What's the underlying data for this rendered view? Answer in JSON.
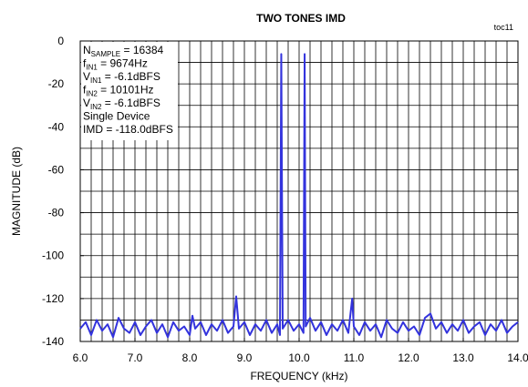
{
  "chart_data": {
    "type": "line",
    "title": "TWO TONES IMD",
    "figure_id": "toc11",
    "xlabel": "FREQUENCY (kHz)",
    "ylabel": "MAGNITUDE (dB)",
    "xlim": [
      6.0,
      14.0
    ],
    "ylim": [
      -140,
      0
    ],
    "xticks": [
      {
        "value": 6,
        "label": "6.0"
      },
      {
        "value": 7,
        "label": "7.0"
      },
      {
        "value": 8,
        "label": "8.0"
      },
      {
        "value": 9,
        "label": "9.0"
      },
      {
        "value": 10,
        "label": "10.0"
      },
      {
        "value": 11,
        "label": "11.0"
      },
      {
        "value": 12,
        "label": "12.0"
      },
      {
        "value": 13,
        "label": "13.0"
      },
      {
        "value": 14,
        "label": "14.0"
      }
    ],
    "yticks": [
      0,
      -20,
      -40,
      -60,
      -80,
      -100,
      -120,
      -140
    ],
    "xgrid_step": 0.2,
    "ygrid_step": 10,
    "grid": true,
    "x": [
      6.0,
      6.1,
      6.2,
      6.3,
      6.4,
      6.5,
      6.6,
      6.7,
      6.8,
      6.9,
      7.0,
      7.1,
      7.2,
      7.3,
      7.4,
      7.5,
      7.6,
      7.7,
      7.8,
      7.9,
      8.0,
      8.05,
      8.1,
      8.2,
      8.3,
      8.4,
      8.5,
      8.6,
      8.7,
      8.8,
      8.85,
      8.9,
      9.0,
      9.1,
      9.2,
      9.3,
      9.4,
      9.5,
      9.6,
      9.65,
      9.674,
      9.7,
      9.8,
      9.9,
      10.0,
      10.08,
      10.101,
      10.12,
      10.2,
      10.3,
      10.4,
      10.5,
      10.6,
      10.7,
      10.8,
      10.9,
      10.97,
      11.0,
      11.1,
      11.2,
      11.3,
      11.4,
      11.5,
      11.6,
      11.7,
      11.8,
      11.9,
      12.0,
      12.1,
      12.2,
      12.3,
      12.4,
      12.5,
      12.6,
      12.7,
      12.8,
      12.9,
      13.0,
      13.1,
      13.2,
      13.3,
      13.4,
      13.5,
      13.6,
      13.7,
      13.8,
      13.9,
      14.0
    ],
    "series": [
      {
        "color": "#3333dd",
        "values": [
          -134,
          -131,
          -137,
          -130,
          -135,
          -132,
          -138,
          -129,
          -134,
          -136,
          -131,
          -137,
          -133,
          -130,
          -136,
          -132,
          -138,
          -131,
          -135,
          -133,
          -137,
          -128,
          -134,
          -131,
          -137,
          -132,
          -135,
          -130,
          -136,
          -133,
          -119,
          -134,
          -131,
          -137,
          -132,
          -135,
          -130,
          -136,
          -132,
          -137,
          -6.1,
          -134,
          -130,
          -135,
          -132,
          -136,
          -6.1,
          -133,
          -129,
          -135,
          -131,
          -137,
          -132,
          -135,
          -130,
          -136,
          -120,
          -133,
          -137,
          -131,
          -135,
          -132,
          -138,
          -130,
          -134,
          -136,
          -131,
          -135,
          -133,
          -137,
          -129,
          -127,
          -134,
          -131,
          -136,
          -132,
          -135,
          -130,
          -136,
          -133,
          -131,
          -137,
          -132,
          -135,
          -130,
          -136,
          -133,
          -131
        ]
      }
    ],
    "annotations": [
      {
        "text": "N",
        "sub": "SAMPLE",
        "tail": " = 16384"
      },
      {
        "text": "f",
        "sub": "IN1",
        "tail": " = 9674Hz"
      },
      {
        "text": "V",
        "sub": "IN1",
        "tail": " = -6.1dBFS"
      },
      {
        "text": "f",
        "sub": "IN2",
        "tail": " = 10101Hz"
      },
      {
        "text": "V",
        "sub": "IN2",
        "tail": " = -6.1dBFS"
      },
      {
        "text": "Single Device"
      },
      {
        "text": "IMD = -118.0dBFS",
        "color": "#3333dd"
      }
    ]
  }
}
